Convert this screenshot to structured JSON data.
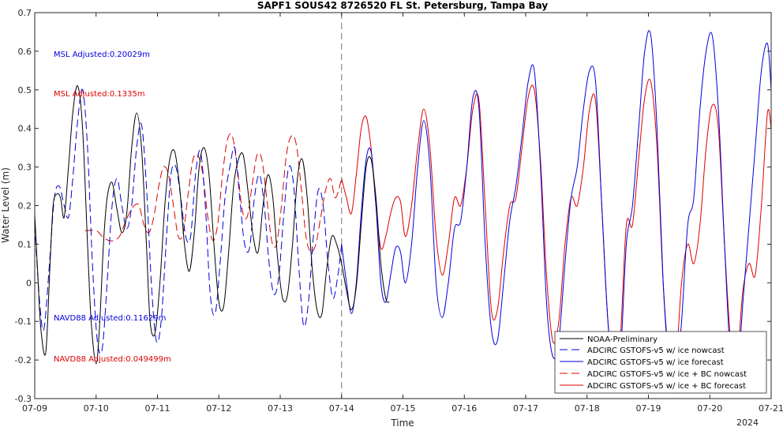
{
  "chart_data": {
    "type": "line",
    "title": "SAPF1 SOUS42 8726520 FL St. Petersburg, Tampa Bay",
    "xlabel": "Time",
    "ylabel": "Water Level (m)",
    "xlim": [
      0,
      12
    ],
    "ylim": [
      -0.3,
      0.7
    ],
    "x_tick_labels": [
      "07-09",
      "07-10",
      "07-11",
      "07-12",
      "07-13",
      "07-14",
      "07-15",
      "07-16",
      "07-17",
      "07-18",
      "07-19",
      "07-20",
      "07-21"
    ],
    "x_year_label": "2024",
    "y_ticks": [
      -0.3,
      -0.2,
      -0.1,
      0,
      0.1,
      0.2,
      0.3,
      0.4,
      0.5,
      0.6,
      0.7
    ],
    "y_tick_labels": [
      "-0.3",
      "-0.2",
      "-0.1",
      "0",
      "0.1",
      "0.2",
      "0.3",
      "0.4",
      "0.5",
      "0.6",
      "0.7"
    ],
    "nowcast_forecast_split": 5,
    "legend_position": "bottom-right",
    "annotations": [
      {
        "text": "MSL Adjusted:0.20029m",
        "color": "#0000dd"
      },
      {
        "text": "MSL Adjusted:0.1335m",
        "color": "#dd0000"
      },
      {
        "text": "NAVD88 Adjusted:0.11629m",
        "color": "#0000dd"
      },
      {
        "text": "NAVD88 Adjusted:0.049499m",
        "color": "#dd0000"
      }
    ],
    "series": [
      {
        "name": "NOAA-Preliminary",
        "color": "#000000",
        "dash": "solid",
        "x": [
          0,
          0.05,
          0.1,
          0.18,
          0.25,
          0.3,
          0.36,
          0.42,
          0.48,
          0.55,
          0.62,
          0.7,
          0.78,
          0.86,
          0.92,
          1.0,
          1.06,
          1.12,
          1.18,
          1.26,
          1.34,
          1.42,
          1.5,
          1.58,
          1.66,
          1.74,
          1.82,
          1.88,
          1.96,
          2.04,
          2.12,
          2.2,
          2.28,
          2.36,
          2.44,
          2.52,
          2.6,
          2.68,
          2.76,
          2.84,
          2.92,
          3.0,
          3.08,
          3.16,
          3.24,
          3.32,
          3.4,
          3.48,
          3.56,
          3.64,
          3.72,
          3.8,
          3.88,
          3.96,
          4.04,
          4.12,
          4.2,
          4.28,
          4.36,
          4.44,
          4.52,
          4.6,
          4.68,
          4.76,
          4.84,
          4.92,
          5.0,
          5.08,
          5.16,
          5.24,
          5.32,
          5.4,
          5.48,
          5.56,
          5.64,
          5.72,
          5.78
        ],
        "y": [
          0.18,
          0.02,
          -0.12,
          -0.18,
          0.05,
          0.2,
          0.23,
          0.22,
          0.17,
          0.3,
          0.44,
          0.51,
          0.4,
          0.1,
          -0.1,
          -0.21,
          -0.1,
          0.1,
          0.22,
          0.26,
          0.19,
          0.13,
          0.18,
          0.35,
          0.44,
          0.35,
          0.1,
          -0.1,
          -0.13,
          0.0,
          0.2,
          0.32,
          0.34,
          0.25,
          0.1,
          0.03,
          0.13,
          0.3,
          0.35,
          0.28,
          0.1,
          -0.05,
          -0.06,
          0.08,
          0.25,
          0.32,
          0.33,
          0.23,
          0.12,
          0.08,
          0.2,
          0.28,
          0.22,
          0.06,
          -0.04,
          -0.03,
          0.1,
          0.27,
          0.32,
          0.22,
          0.04,
          -0.07,
          -0.08,
          0.04,
          0.12,
          0.1,
          0.05,
          -0.02,
          -0.07,
          -0.01,
          0.15,
          0.3,
          0.32,
          0.22,
          0.05,
          -0.04,
          -0.05
        ]
      },
      {
        "name": "ADCIRC GSTOFS-v5 w/ ice nowcast",
        "color": "#0000dd",
        "dash": "long",
        "x": [
          0,
          0.08,
          0.15,
          0.24,
          0.32,
          0.4,
          0.48,
          0.55,
          0.62,
          0.7,
          0.78,
          0.86,
          0.94,
          1.02,
          1.1,
          1.18,
          1.26,
          1.34,
          1.42,
          1.5,
          1.58,
          1.66,
          1.74,
          1.82,
          1.9,
          1.98,
          2.06,
          2.14,
          2.22,
          2.3,
          2.38,
          2.46,
          2.54,
          2.62,
          2.7,
          2.78,
          2.86,
          2.94,
          3.02,
          3.1,
          3.18,
          3.26,
          3.34,
          3.42,
          3.5,
          3.58,
          3.66,
          3.74,
          3.82,
          3.9,
          3.98,
          4.06,
          4.14,
          4.22,
          4.3,
          4.38,
          4.46,
          4.54,
          4.62,
          4.7,
          4.78,
          4.86,
          4.94,
          5.0
        ],
        "y": [
          0.15,
          -0.05,
          -0.12,
          0.05,
          0.22,
          0.25,
          0.2,
          0.17,
          0.27,
          0.42,
          0.5,
          0.35,
          0.05,
          -0.15,
          -0.17,
          0.0,
          0.2,
          0.27,
          0.2,
          0.14,
          0.2,
          0.35,
          0.41,
          0.25,
          0.0,
          -0.15,
          -0.1,
          0.1,
          0.28,
          0.3,
          0.22,
          0.12,
          0.12,
          0.28,
          0.34,
          0.2,
          -0.03,
          -0.08,
          0.05,
          0.22,
          0.3,
          0.35,
          0.22,
          0.1,
          0.09,
          0.22,
          0.28,
          0.2,
          0.05,
          -0.03,
          0.02,
          0.18,
          0.3,
          0.25,
          0.05,
          -0.11,
          -0.05,
          0.12,
          0.24,
          0.2,
          0.05,
          -0.04,
          0.02,
          0.1
        ]
      },
      {
        "name": "ADCIRC GSTOFS-v5 w/ ice forecast",
        "color": "#0000dd",
        "dash": "solid",
        "x": [
          5.0,
          5.08,
          5.16,
          5.24,
          5.32,
          5.4,
          5.48,
          5.56,
          5.64,
          5.72,
          5.8,
          5.88,
          5.96,
          6.04,
          6.14,
          6.24,
          6.34,
          6.44,
          6.54,
          6.64,
          6.74,
          6.84,
          6.94,
          7.04,
          7.14,
          7.24,
          7.34,
          7.44,
          7.54,
          7.64,
          7.74,
          7.84,
          7.94,
          8.04,
          8.14,
          8.24,
          8.34,
          8.44,
          8.54,
          8.64,
          8.74,
          8.84,
          8.94,
          9.04,
          9.14,
          9.24,
          9.34,
          9.44,
          9.54,
          9.64,
          9.74,
          9.84,
          9.94,
          10.04,
          10.14,
          10.24,
          10.34,
          10.44,
          10.54,
          10.64,
          10.74,
          10.84,
          10.94,
          11.04,
          11.14,
          11.24,
          11.34,
          11.44,
          11.54,
          11.64,
          11.74,
          11.84,
          11.94,
          12.0
        ],
        "y": [
          0.1,
          0.0,
          -0.08,
          0.0,
          0.18,
          0.32,
          0.34,
          0.2,
          0.0,
          -0.05,
          0.02,
          0.09,
          0.08,
          0.0,
          0.1,
          0.3,
          0.42,
          0.3,
          0.0,
          -0.09,
          0.0,
          0.14,
          0.16,
          0.3,
          0.48,
          0.45,
          0.1,
          -0.12,
          -0.15,
          0.0,
          0.16,
          0.25,
          0.38,
          0.52,
          0.55,
          0.3,
          -0.05,
          -0.19,
          -0.15,
          0.05,
          0.22,
          0.3,
          0.45,
          0.55,
          0.52,
          0.2,
          -0.1,
          -0.23,
          -0.2,
          0.1,
          0.2,
          0.4,
          0.6,
          0.64,
          0.4,
          0.0,
          -0.22,
          -0.28,
          -0.1,
          0.15,
          0.22,
          0.45,
          0.6,
          0.64,
          0.45,
          0.1,
          -0.2,
          -0.26,
          -0.05,
          0.15,
          0.35,
          0.55,
          0.62,
          0.5
        ]
      },
      {
        "name": "ADCIRC GSTOFS-v5 w/ ice + BC nowcast",
        "color": "#dd0000",
        "dash": "long",
        "x": [
          0.82,
          1.0,
          1.1,
          1.2,
          1.3,
          1.38,
          1.46,
          1.54,
          1.62,
          1.7,
          1.78,
          1.86,
          1.94,
          2.02,
          2.1,
          2.18,
          2.26,
          2.34,
          2.42,
          2.5,
          2.58,
          2.66,
          2.74,
          2.82,
          2.9,
          2.98,
          3.06,
          3.14,
          3.22,
          3.3,
          3.38,
          3.46,
          3.54,
          3.62,
          3.7,
          3.78,
          3.86,
          3.94,
          4.02,
          4.1,
          4.18,
          4.26,
          4.34,
          4.42,
          4.5,
          4.58,
          4.66,
          4.74,
          4.82,
          4.9,
          5.0
        ],
        "y": [
          0.135,
          0.135,
          0.12,
          0.11,
          0.11,
          0.12,
          0.15,
          0.18,
          0.2,
          0.2,
          0.15,
          0.13,
          0.17,
          0.25,
          0.3,
          0.28,
          0.2,
          0.12,
          0.13,
          0.23,
          0.32,
          0.33,
          0.28,
          0.17,
          0.11,
          0.15,
          0.28,
          0.37,
          0.38,
          0.3,
          0.19,
          0.17,
          0.25,
          0.33,
          0.32,
          0.22,
          0.11,
          0.1,
          0.2,
          0.33,
          0.38,
          0.36,
          0.25,
          0.12,
          0.08,
          0.1,
          0.17,
          0.24,
          0.27,
          0.22,
          0.27
        ]
      },
      {
        "name": "ADCIRC GSTOFS-v5 w/ ice + BC forecast",
        "color": "#dd0000",
        "dash": "solid",
        "x": [
          5.0,
          5.08,
          5.16,
          5.24,
          5.32,
          5.4,
          5.48,
          5.56,
          5.64,
          5.72,
          5.8,
          5.88,
          5.96,
          6.04,
          6.14,
          6.24,
          6.34,
          6.44,
          6.54,
          6.64,
          6.74,
          6.84,
          6.94,
          7.04,
          7.14,
          7.24,
          7.34,
          7.44,
          7.54,
          7.64,
          7.74,
          7.84,
          7.94,
          8.04,
          8.14,
          8.24,
          8.34,
          8.44,
          8.54,
          8.64,
          8.74,
          8.84,
          8.94,
          9.04,
          9.14,
          9.24,
          9.34,
          9.44,
          9.54,
          9.64,
          9.74,
          9.84,
          9.94,
          10.04,
          10.14,
          10.24,
          10.34,
          10.44,
          10.54,
          10.64,
          10.74,
          10.84,
          10.94,
          11.04,
          11.14,
          11.24,
          11.34,
          11.44,
          11.54,
          11.64,
          11.74,
          11.84,
          11.94,
          12.0
        ],
        "y": [
          0.27,
          0.22,
          0.18,
          0.28,
          0.4,
          0.43,
          0.35,
          0.2,
          0.09,
          0.12,
          0.18,
          0.22,
          0.21,
          0.12,
          0.2,
          0.35,
          0.45,
          0.35,
          0.12,
          0.02,
          0.1,
          0.22,
          0.2,
          0.3,
          0.45,
          0.47,
          0.2,
          -0.07,
          -0.07,
          0.08,
          0.2,
          0.22,
          0.35,
          0.48,
          0.5,
          0.32,
          0.02,
          -0.15,
          -0.1,
          0.1,
          0.22,
          0.2,
          0.3,
          0.45,
          0.47,
          0.2,
          -0.1,
          -0.23,
          -0.15,
          0.15,
          0.15,
          0.32,
          0.48,
          0.52,
          0.35,
          0.0,
          -0.2,
          -0.22,
          0.0,
          0.1,
          0.05,
          0.15,
          0.35,
          0.46,
          0.4,
          0.1,
          -0.15,
          -0.2,
          -0.02,
          0.05,
          0.02,
          0.2,
          0.44,
          0.4
        ]
      }
    ]
  }
}
